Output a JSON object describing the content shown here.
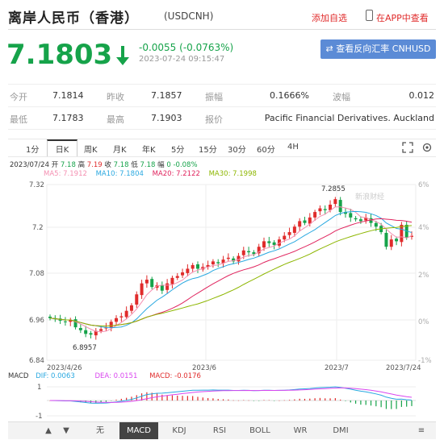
{
  "header": {
    "title": "离岸人民币（香港）",
    "code": "(USDCNH)",
    "add_watchlist": "添加自选",
    "open_in_app": "在APP中查看"
  },
  "quote": {
    "price": "7.1803",
    "change": "-0.0055 (-0.0763%)",
    "timestamp": "2023-07-24 09:15:47",
    "compare_button": "查看反向汇率 CNHUSD",
    "direction": "down",
    "color": "#16a34a"
  },
  "stats": {
    "row1": {
      "open_label": "今开",
      "open": "7.1814",
      "prev_close_label": "昨收",
      "prev_close": "7.1857",
      "amplitude_label": "振幅",
      "amplitude": "0.1666%",
      "volatility_label": "波幅",
      "volatility": "0.012"
    },
    "row2": {
      "low_label": "最低",
      "low": "7.1783",
      "high_label": "最高",
      "high": "7.1903",
      "quote_label": "报价",
      "quote_source": "Pacific Financial Derivatives. Auckland"
    }
  },
  "tabs": [
    "1分",
    "日K",
    "周K",
    "月K",
    "年K",
    "5分",
    "15分",
    "30分",
    "60分",
    "4H"
  ],
  "active_tab": "日K",
  "chart_data": {
    "type": "candlestick",
    "ohlc_header": {
      "date": "2023/07/24",
      "open_label": "开",
      "open": "7.18",
      "high_label": "高",
      "high": "7.19",
      "close_label": "收",
      "close": "7.18",
      "low_label": "低",
      "low": "7.18",
      "change_label": "幅",
      "change": "0 -0.08%"
    },
    "moving_averages": [
      {
        "name": "MA5",
        "value": "7.1912",
        "color": "#f48fb1"
      },
      {
        "name": "MA10",
        "value": "7.1804",
        "color": "#29a8e0"
      },
      {
        "name": "MA20",
        "value": "7.2122",
        "color": "#e0245e"
      },
      {
        "name": "MA30",
        "value": "7.1998",
        "color": "#8db600"
      }
    ],
    "y_ticks": [
      "7.32",
      "7.2",
      "7.08",
      "6.96",
      "6.84"
    ],
    "y_right_ticks": [
      "6%",
      "4%",
      "2%",
      "0%",
      "-1%"
    ],
    "x_ticks": [
      "2023/4/26",
      "2023/6",
      "2023/7",
      "2023/7/24"
    ],
    "ylim": [
      6.84,
      7.32
    ],
    "max_annotation": "7.2855",
    "min_annotation": "6.8957",
    "watermark": "新浪财经",
    "closes": [
      6.955,
      6.952,
      6.948,
      6.945,
      6.95,
      6.93,
      6.922,
      6.912,
      6.91,
      6.92,
      6.925,
      6.93,
      6.945,
      6.955,
      6.96,
      6.975,
      6.99,
      7.02,
      7.05,
      7.06,
      7.04,
      7.045,
      7.03,
      7.05,
      7.065,
      7.07,
      7.08,
      7.09,
      7.1,
      7.09,
      7.095,
      7.1,
      7.11,
      7.105,
      7.115,
      7.12,
      7.11,
      7.125,
      7.14,
      7.135,
      7.13,
      7.15,
      7.165,
      7.16,
      7.155,
      7.17,
      7.18,
      7.19,
      7.205,
      7.22,
      7.215,
      7.23,
      7.245,
      7.255,
      7.25,
      7.265,
      7.28,
      7.245,
      7.24,
      7.23,
      7.225,
      7.22,
      7.23,
      7.215,
      7.205,
      7.19,
      7.15,
      7.17,
      7.165,
      7.21,
      7.175,
      7.18
    ]
  },
  "macd": {
    "label": "MACD",
    "dif_label": "DIF: 0.0063",
    "dea_label": "DEA: 0.0151",
    "macd_label": "MACD: -0.0176",
    "y_ticks": [
      "1",
      "-1"
    ]
  },
  "indicator_tabs": [
    "无",
    "MACD",
    "KDJ",
    "RSI",
    "BOLL",
    "WR",
    "DMI"
  ],
  "active_indicator": "MACD",
  "colors": {
    "up": "#e02b2b",
    "down": "#16a34a",
    "accent": "#5b8bd6"
  }
}
